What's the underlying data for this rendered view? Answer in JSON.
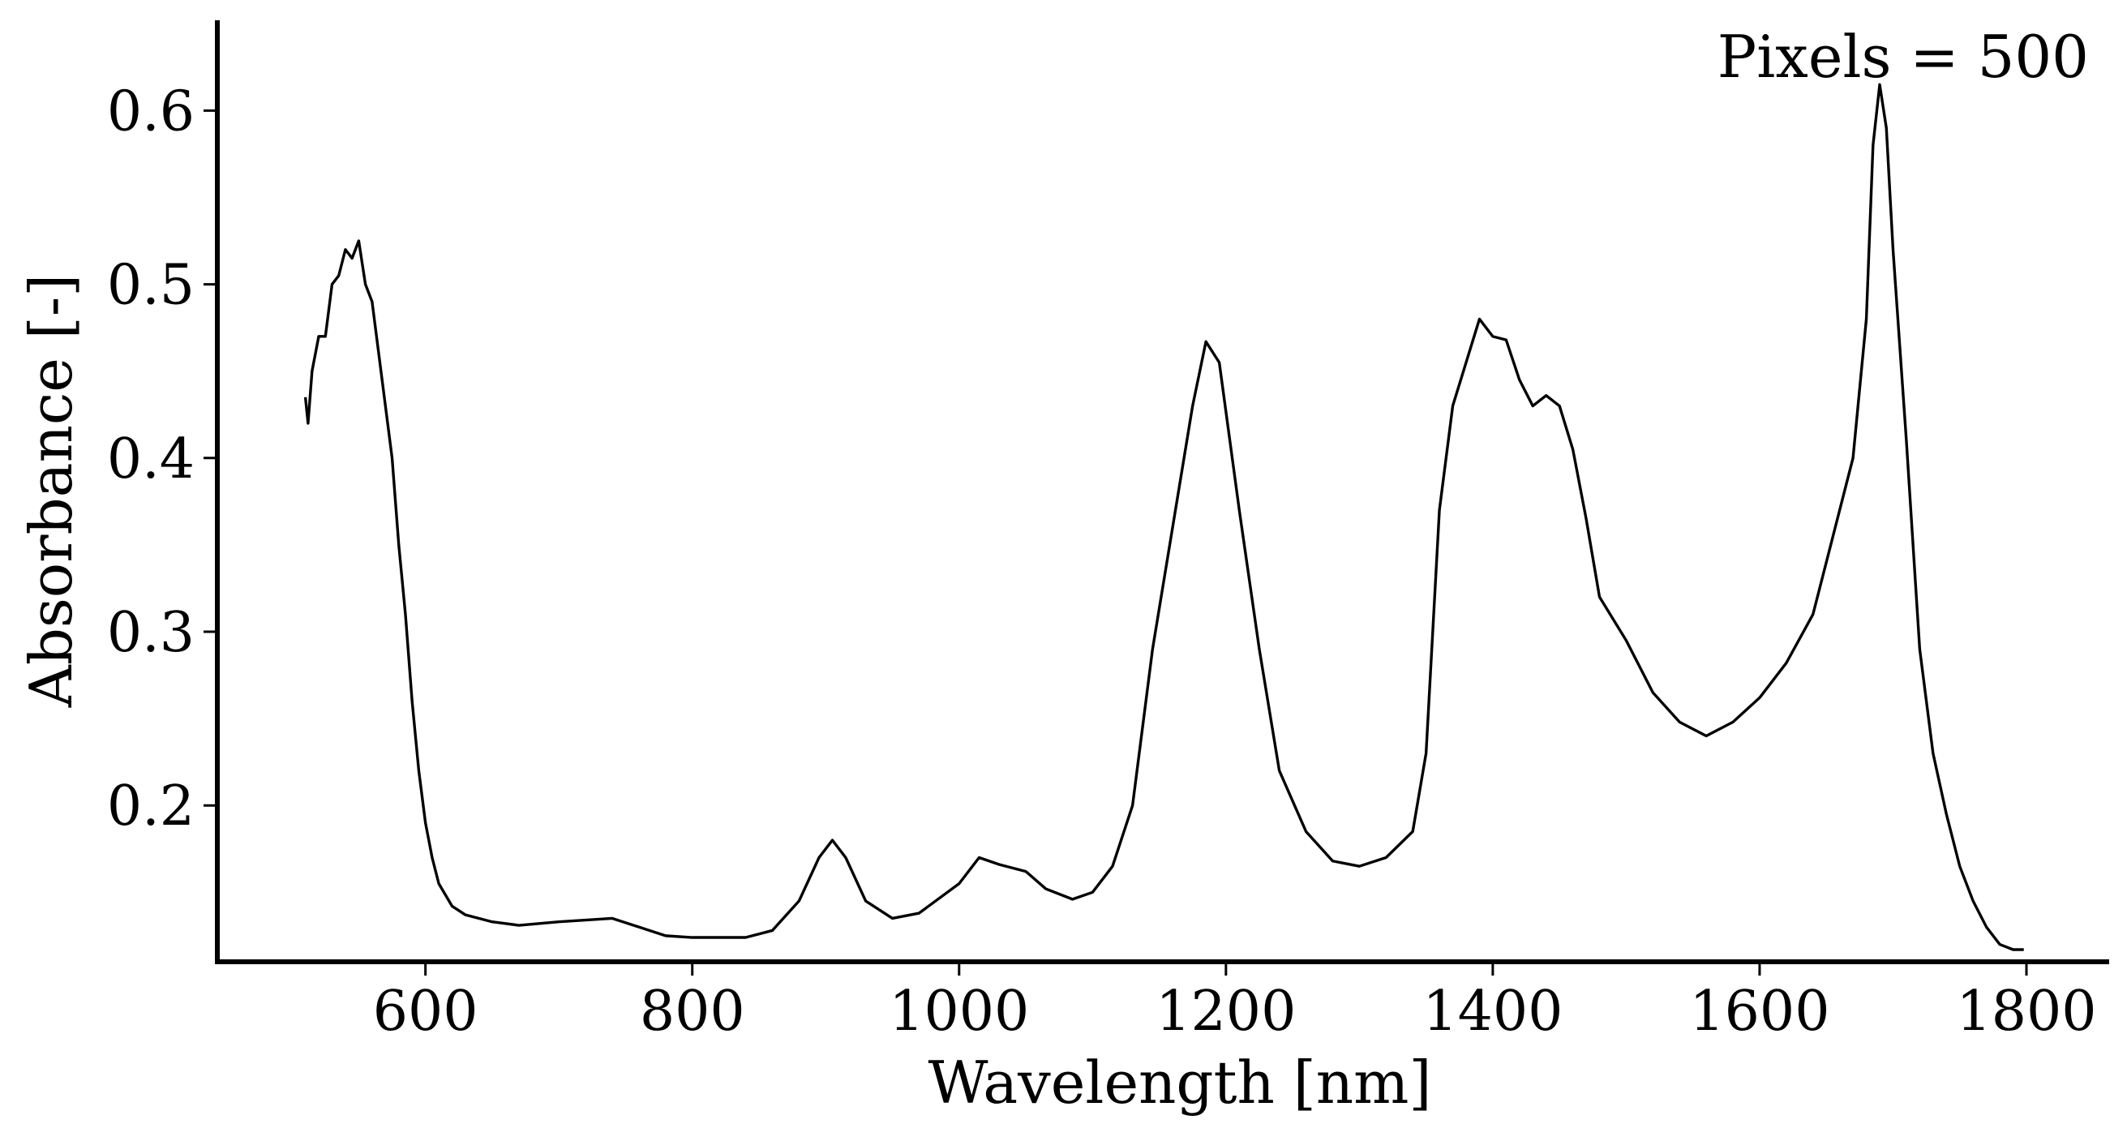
{
  "chart_data": {
    "type": "line",
    "xlabel": "Wavelength [nm]",
    "ylabel": "Absorbance [-]",
    "annotation": "Pixels = 500",
    "color": "#000000",
    "xlim": [
      444,
      1862
    ],
    "ylim": [
      0.11,
      0.652
    ],
    "xticks": [
      600,
      800,
      1000,
      1200,
      1400,
      1600,
      1800
    ],
    "yticks": [
      0.2,
      0.3,
      0.4,
      0.5,
      0.6
    ],
    "x": [
      510,
      512,
      515,
      520,
      525,
      530,
      535,
      540,
      545,
      550,
      555,
      560,
      565,
      570,
      575,
      580,
      585,
      590,
      595,
      600,
      605,
      610,
      620,
      630,
      650,
      670,
      700,
      740,
      760,
      780,
      800,
      840,
      860,
      880,
      895,
      905,
      915,
      930,
      950,
      970,
      1000,
      1015,
      1030,
      1050,
      1065,
      1085,
      1100,
      1115,
      1130,
      1145,
      1160,
      1175,
      1185,
      1195,
      1210,
      1225,
      1240,
      1260,
      1280,
      1300,
      1320,
      1340,
      1350,
      1360,
      1370,
      1380,
      1390,
      1400,
      1410,
      1420,
      1430,
      1440,
      1450,
      1460,
      1470,
      1480,
      1500,
      1520,
      1540,
      1560,
      1580,
      1600,
      1620,
      1640,
      1650,
      1660,
      1670,
      1680,
      1685,
      1690,
      1695,
      1700,
      1710,
      1720,
      1730,
      1740,
      1750,
      1760,
      1770,
      1780,
      1790,
      1798
    ],
    "values": [
      0.435,
      0.42,
      0.45,
      0.47,
      0.47,
      0.5,
      0.505,
      0.52,
      0.515,
      0.525,
      0.5,
      0.49,
      0.46,
      0.43,
      0.4,
      0.35,
      0.31,
      0.26,
      0.22,
      0.19,
      0.17,
      0.155,
      0.142,
      0.137,
      0.133,
      0.131,
      0.133,
      0.135,
      0.13,
      0.125,
      0.124,
      0.124,
      0.128,
      0.145,
      0.17,
      0.18,
      0.17,
      0.145,
      0.135,
      0.138,
      0.155,
      0.17,
      0.166,
      0.162,
      0.152,
      0.146,
      0.15,
      0.165,
      0.2,
      0.29,
      0.36,
      0.43,
      0.467,
      0.455,
      0.37,
      0.29,
      0.22,
      0.185,
      0.168,
      0.165,
      0.17,
      0.185,
      0.23,
      0.37,
      0.43,
      0.455,
      0.48,
      0.47,
      0.468,
      0.445,
      0.43,
      0.436,
      0.43,
      0.405,
      0.365,
      0.32,
      0.295,
      0.265,
      0.248,
      0.24,
      0.248,
      0.262,
      0.282,
      0.31,
      0.34,
      0.37,
      0.4,
      0.48,
      0.58,
      0.615,
      0.59,
      0.52,
      0.41,
      0.29,
      0.23,
      0.195,
      0.165,
      0.145,
      0.13,
      0.12,
      0.117,
      0.117
    ]
  }
}
